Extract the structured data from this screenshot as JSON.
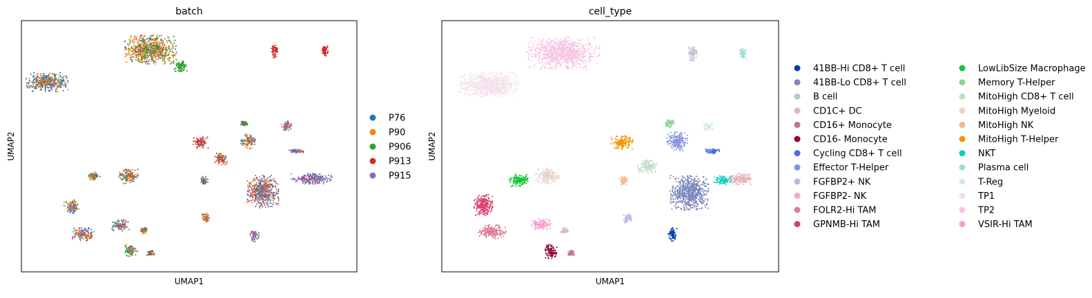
{
  "chart_data": [
    {
      "type": "scatter",
      "title": "batch",
      "xlabel": "UMAP1",
      "ylabel": "UMAP2",
      "xlim": [
        0,
        100
      ],
      "ylim": [
        0,
        100
      ],
      "grid": false,
      "legend_placement": "right",
      "series": [
        {
          "name": "P76",
          "color": "#1f77b4"
        },
        {
          "name": "P90",
          "color": "#ff7f0e"
        },
        {
          "name": "P906",
          "color": "#2ca02c"
        },
        {
          "name": "P913",
          "color": "#d62728"
        },
        {
          "name": "P915",
          "color": "#9467bd"
        }
      ],
      "clusters": [
        {
          "x": 7.5,
          "y": 75.5,
          "rx": 5.8,
          "ry": 3.3,
          "w": [
            0.65,
            0.32,
            0.01,
            0.01,
            0.01
          ]
        },
        {
          "x": 38.5,
          "y": 88.5,
          "rx": 6.8,
          "ry": 5.0,
          "w": [
            0.08,
            0.6,
            0.22,
            0.02,
            0.08
          ]
        },
        {
          "x": 47.5,
          "y": 82.0,
          "rx": 2.0,
          "ry": 2.0,
          "w": [
            0,
            0,
            1,
            0,
            0
          ]
        },
        {
          "x": 75.5,
          "y": 88.0,
          "rx": 1.0,
          "ry": 2.4,
          "w": [
            0,
            0.02,
            0,
            0.98,
            0
          ]
        },
        {
          "x": 90.5,
          "y": 88.0,
          "rx": 0.9,
          "ry": 1.8,
          "w": [
            0,
            0,
            0,
            1,
            0
          ]
        },
        {
          "x": 53.5,
          "y": 51.5,
          "rx": 2.0,
          "ry": 2.0,
          "w": [
            0.1,
            0.15,
            0.05,
            0.6,
            0.1
          ]
        },
        {
          "x": 59.5,
          "y": 45.0,
          "rx": 1.8,
          "ry": 2.2,
          "w": [
            0.2,
            0.3,
            0.1,
            0.3,
            0.1
          ]
        },
        {
          "x": 67.5,
          "y": 52.0,
          "rx": 2.0,
          "ry": 2.5,
          "w": [
            0.2,
            0.35,
            0.15,
            0.1,
            0.2
          ]
        },
        {
          "x": 66.5,
          "y": 59.0,
          "rx": 1.0,
          "ry": 1.0,
          "w": [
            0.1,
            0.1,
            0.7,
            0.05,
            0.05
          ]
        },
        {
          "x": 79.0,
          "y": 58.0,
          "rx": 1.3,
          "ry": 1.8,
          "w": [
            0.45,
            0.2,
            0.05,
            0.1,
            0.2
          ]
        },
        {
          "x": 82.0,
          "y": 48.0,
          "rx": 1.8,
          "ry": 0.7,
          "w": [
            0.35,
            0.1,
            0.05,
            0.1,
            0.4
          ]
        },
        {
          "x": 72.0,
          "y": 32.0,
          "rx": 4.2,
          "ry": 5.7,
          "w": [
            0.32,
            0.25,
            0.06,
            0.07,
            0.3
          ]
        },
        {
          "x": 86.5,
          "y": 37.0,
          "rx": 5.5,
          "ry": 1.9,
          "w": [
            0.4,
            0.12,
            0.03,
            0.05,
            0.4
          ]
        },
        {
          "x": 54.5,
          "y": 36.5,
          "rx": 1.0,
          "ry": 1.6,
          "w": [
            0.45,
            0.35,
            0.05,
            0.05,
            0.1
          ]
        },
        {
          "x": 21.5,
          "y": 38.0,
          "rx": 1.8,
          "ry": 1.6,
          "w": [
            0.35,
            0.45,
            0.1,
            0.05,
            0.05
          ]
        },
        {
          "x": 32.0,
          "y": 38.0,
          "rx": 2.6,
          "ry": 2.6,
          "w": [
            0.35,
            0.4,
            0.1,
            0.05,
            0.1
          ]
        },
        {
          "x": 15.0,
          "y": 26.0,
          "rx": 2.1,
          "ry": 2.5,
          "w": [
            0.45,
            0.3,
            0.1,
            0.05,
            0.1
          ]
        },
        {
          "x": 18.5,
          "y": 15.0,
          "rx": 3.0,
          "ry": 2.3,
          "w": [
            0.35,
            0.35,
            0.1,
            0.05,
            0.15
          ]
        },
        {
          "x": 29.5,
          "y": 18.5,
          "rx": 2.3,
          "ry": 2.0,
          "w": [
            0.3,
            0.3,
            0.1,
            0.05,
            0.25
          ]
        },
        {
          "x": 36.5,
          "y": 16.5,
          "rx": 1.0,
          "ry": 1.2,
          "w": [
            0.35,
            0.4,
            0.1,
            0.05,
            0.1
          ]
        },
        {
          "x": 32.5,
          "y": 8.5,
          "rx": 1.8,
          "ry": 2.2,
          "w": [
            0.3,
            0.3,
            0.25,
            0.05,
            0.1
          ]
        },
        {
          "x": 38.5,
          "y": 7.5,
          "rx": 1.0,
          "ry": 1.0,
          "w": [
            0.4,
            0.3,
            0.1,
            0.1,
            0.1
          ]
        },
        {
          "x": 55.0,
          "y": 21.5,
          "rx": 1.0,
          "ry": 1.5,
          "w": [
            0.15,
            0.65,
            0.05,
            0.05,
            0.1
          ]
        },
        {
          "x": 69.5,
          "y": 14.5,
          "rx": 1.2,
          "ry": 2.2,
          "w": [
            0.25,
            0.1,
            0.05,
            0.05,
            0.55
          ]
        }
      ]
    },
    {
      "type": "scatter",
      "title": "cell_type",
      "xlabel": "UMAP1",
      "ylabel": "UMAP2",
      "xlim": [
        0,
        100
      ],
      "ylim": [
        0,
        100
      ],
      "grid": false,
      "legend_placement": "right",
      "series": [
        {
          "name": "41BB-Hi CD8+ T cell",
          "color": "#023fa5"
        },
        {
          "name": "41BB-Lo CD8+ T cell",
          "color": "#7d87b9"
        },
        {
          "name": "B cell",
          "color": "#bec1d4"
        },
        {
          "name": "CD1C+ DC",
          "color": "#d6bcc0"
        },
        {
          "name": "CD16+ Monocyte",
          "color": "#bb7784"
        },
        {
          "name": "CD16- Monocyte",
          "color": "#8e063b"
        },
        {
          "name": "Cycling CD8+ T cell",
          "color": "#4a6fe3"
        },
        {
          "name": "Effector T-Helper",
          "color": "#8595e1"
        },
        {
          "name": "FGFBP2+ NK",
          "color": "#b5bbe3"
        },
        {
          "name": "FGFBP2- NK",
          "color": "#e6afb9"
        },
        {
          "name": "FOLR2-Hi TAM",
          "color": "#e07b91"
        },
        {
          "name": "GPNMB-Hi TAM",
          "color": "#d33f6a"
        },
        {
          "name": "LowLibSize Macrophage",
          "color": "#11c638"
        },
        {
          "name": "Memory T-Helper",
          "color": "#8dd593"
        },
        {
          "name": "MitoHigh CD8+ T cell",
          "color": "#c6dec7"
        },
        {
          "name": "MitoHigh Myeloid",
          "color": "#ead3c6"
        },
        {
          "name": "MitoHigh NK",
          "color": "#f0b98d"
        },
        {
          "name": "MitoHigh T-Helper",
          "color": "#ef9708"
        },
        {
          "name": "NKT",
          "color": "#0fcfc0"
        },
        {
          "name": "Plasma cell",
          "color": "#9cded6"
        },
        {
          "name": "T-Reg",
          "color": "#d5eae7"
        },
        {
          "name": "TP1",
          "color": "#f3e1eb"
        },
        {
          "name": "TP2",
          "color": "#f6c4e1"
        },
        {
          "name": "VSIR-Hi TAM",
          "color": "#f79cd4"
        }
      ],
      "clusters": [
        {
          "x": 14.0,
          "y": 74.5,
          "rx": 8.0,
          "ry": 4.3,
          "s": 21
        },
        {
          "x": 36.0,
          "y": 87.0,
          "rx": 9.5,
          "ry": 5.7,
          "s": 22
        },
        {
          "x": 74.5,
          "y": 87.0,
          "rx": 1.2,
          "ry": 2.7,
          "s": 2
        },
        {
          "x": 89.5,
          "y": 87.0,
          "rx": 1.0,
          "ry": 1.9,
          "s": 19
        },
        {
          "x": 67.5,
          "y": 59.0,
          "rx": 1.2,
          "ry": 1.4,
          "s": 13
        },
        {
          "x": 79.0,
          "y": 58.0,
          "rx": 1.3,
          "ry": 1.8,
          "s": 20
        },
        {
          "x": 53.5,
          "y": 51.5,
          "rx": 2.9,
          "ry": 2.3,
          "s": 17
        },
        {
          "x": 70.0,
          "y": 52.0,
          "rx": 2.8,
          "ry": 3.2,
          "s": 7
        },
        {
          "x": 80.5,
          "y": 48.0,
          "rx": 2.0,
          "ry": 0.9,
          "s": 6
        },
        {
          "x": 61.0,
          "y": 42.0,
          "rx": 2.6,
          "ry": 2.6,
          "s": 14
        },
        {
          "x": 73.5,
          "y": 31.5,
          "rx": 5.0,
          "ry": 6.0,
          "s": 1
        },
        {
          "x": 83.5,
          "y": 36.5,
          "rx": 2.4,
          "ry": 1.7,
          "s": 18
        },
        {
          "x": 89.0,
          "y": 37.0,
          "rx": 3.3,
          "ry": 1.9,
          "s": 9
        },
        {
          "x": 54.0,
          "y": 36.5,
          "rx": 1.0,
          "ry": 1.6,
          "s": 16
        },
        {
          "x": 23.0,
          "y": 36.5,
          "rx": 2.6,
          "ry": 2.2,
          "s": 12
        },
        {
          "x": 31.5,
          "y": 38.0,
          "rx": 3.2,
          "ry": 2.7,
          "s": 15
        },
        {
          "x": 12.5,
          "y": 26.5,
          "rx": 2.6,
          "ry": 3.7,
          "s": 11
        },
        {
          "x": 15.0,
          "y": 16.0,
          "rx": 3.6,
          "ry": 2.4,
          "s": 10
        },
        {
          "x": 29.5,
          "y": 19.0,
          "rx": 2.6,
          "ry": 2.0,
          "s": 23
        },
        {
          "x": 36.5,
          "y": 16.5,
          "rx": 1.0,
          "ry": 1.0,
          "s": 3
        },
        {
          "x": 32.5,
          "y": 8.0,
          "rx": 1.6,
          "ry": 2.6,
          "s": 5
        },
        {
          "x": 38.5,
          "y": 7.5,
          "rx": 0.9,
          "ry": 1.0,
          "s": 4
        },
        {
          "x": 55.0,
          "y": 21.5,
          "rx": 1.2,
          "ry": 1.7,
          "s": 8
        },
        {
          "x": 68.5,
          "y": 15.0,
          "rx": 1.2,
          "ry": 2.5,
          "s": 0
        }
      ]
    }
  ]
}
